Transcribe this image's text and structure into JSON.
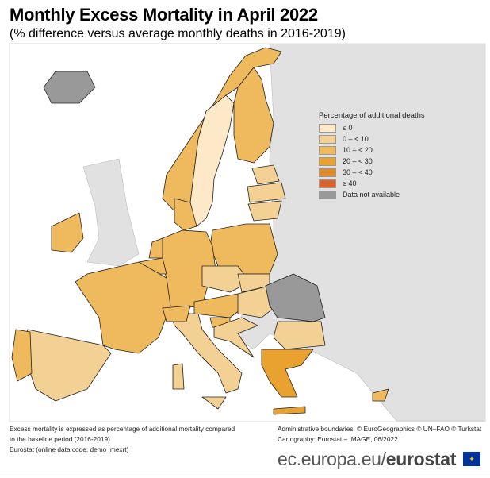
{
  "title": "Monthly Excess Mortality in April 2022",
  "subtitle": "(% difference versus average monthly deaths in 2016-2019)",
  "colors": {
    "sea": "#ffffff",
    "non_eu_land": "#e1e1e1",
    "border": "#222222"
  },
  "legend": {
    "title": "Percentage of additional deaths",
    "classes": [
      {
        "label": "≤ 0",
        "color": "#fde9c8"
      },
      {
        "label": "0 – < 10",
        "color": "#f3d194"
      },
      {
        "label": "10 – < 20",
        "color": "#efb95e"
      },
      {
        "label": "20 – < 30",
        "color": "#e9a12f"
      },
      {
        "label": "30 – < 40",
        "color": "#e08a2a"
      },
      {
        "label": "≥ 40",
        "color": "#d9642b"
      },
      {
        "label": "Data not available",
        "color": "#999999"
      }
    ]
  },
  "countries": [
    {
      "name": "Norway",
      "class": 2
    },
    {
      "name": "Sweden",
      "class": 0
    },
    {
      "name": "Finland",
      "class": 2
    },
    {
      "name": "Estonia",
      "class": 1
    },
    {
      "name": "Latvia",
      "class": 1
    },
    {
      "name": "Lithuania",
      "class": 1
    },
    {
      "name": "Poland",
      "class": 2
    },
    {
      "name": "Germany",
      "class": 2
    },
    {
      "name": "Denmark",
      "class": 2
    },
    {
      "name": "Netherlands",
      "class": 2
    },
    {
      "name": "Belgium",
      "class": 2
    },
    {
      "name": "France",
      "class": 2
    },
    {
      "name": "Spain",
      "class": 1
    },
    {
      "name": "Portugal",
      "class": 2
    },
    {
      "name": "Italy",
      "class": 1
    },
    {
      "name": "Switzerland",
      "class": 2
    },
    {
      "name": "Austria",
      "class": 2
    },
    {
      "name": "Czechia",
      "class": 1
    },
    {
      "name": "Slovakia",
      "class": 1
    },
    {
      "name": "Hungary",
      "class": 1
    },
    {
      "name": "Slovenia",
      "class": 2
    },
    {
      "name": "Croatia",
      "class": 1
    },
    {
      "name": "Romania",
      "class": 6
    },
    {
      "name": "Bulgaria",
      "class": 1
    },
    {
      "name": "Greece",
      "class": 3
    },
    {
      "name": "Cyprus",
      "class": 2
    },
    {
      "name": "Ireland",
      "class": 2
    },
    {
      "name": "Iceland",
      "class": 6
    }
  ],
  "footer": {
    "note_line1": "Excess mortality is expressed as percentage of additional mortality compared",
    "note_line2": "to the baseline period (2016-2019)",
    "source": "Eurostat (online data code: demo_mexrt)",
    "boundaries": "Administrative boundaries: © EuroGeographics © UN–FAO © Turkstat",
    "cartography": "Cartography: Eurostat – IMAGE, 06/2022",
    "brand_prefix": "ec.europa.eu/",
    "brand_name": "eurostat"
  }
}
